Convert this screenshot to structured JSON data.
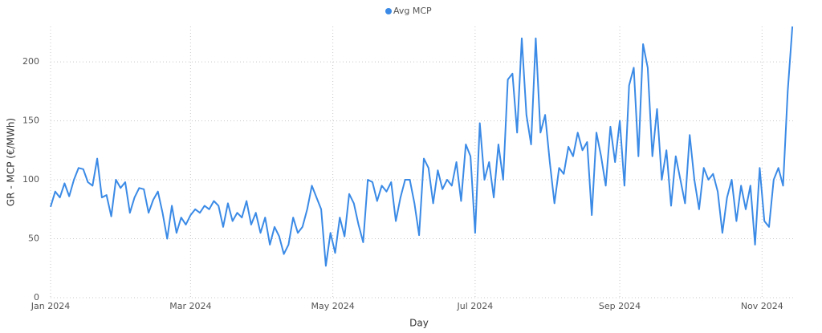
{
  "chart_data": {
    "type": "line",
    "x_label": "Day",
    "y_label": "GR - MCP (€/MWh)",
    "x": [
      0,
      2,
      4,
      6,
      8,
      10,
      12,
      14,
      16,
      18,
      20,
      22,
      24,
      26,
      28,
      30,
      32,
      34,
      36,
      38,
      40,
      42,
      44,
      46,
      48,
      50,
      52,
      54,
      56,
      58,
      60,
      62,
      64,
      66,
      68,
      70,
      72,
      74,
      76,
      78,
      80,
      82,
      84,
      86,
      88,
      90,
      92,
      94,
      96,
      98,
      100,
      102,
      104,
      106,
      108,
      110,
      112,
      114,
      116,
      118,
      120,
      122,
      124,
      126,
      128,
      130,
      132,
      134,
      136,
      138,
      140,
      142,
      144,
      146,
      148,
      150,
      152,
      154,
      156,
      158,
      160,
      162,
      164,
      166,
      168,
      170,
      172,
      174,
      176,
      178,
      180,
      182,
      184,
      186,
      188,
      190,
      192,
      194,
      196,
      198,
      200,
      202,
      204,
      206,
      208,
      210,
      212,
      214,
      216,
      218,
      220,
      222,
      224,
      226,
      228,
      230,
      232,
      234,
      236,
      238,
      240,
      242,
      244,
      246,
      248,
      250,
      252,
      254,
      256,
      258,
      260,
      262,
      264,
      266,
      268,
      270,
      272,
      274,
      276,
      278,
      280,
      282,
      284,
      286,
      288,
      290,
      292,
      294,
      296,
      298,
      300,
      302,
      304,
      306,
      308,
      310,
      312,
      314,
      316,
      318
    ],
    "series": [
      {
        "name": "Avg MCP",
        "color": "#3a8ae6",
        "values": [
          77,
          90,
          85,
          97,
          86,
          100,
          110,
          109,
          98,
          95,
          118,
          85,
          87,
          69,
          100,
          93,
          98,
          72,
          85,
          93,
          92,
          72,
          83,
          90,
          72,
          50,
          78,
          55,
          68,
          62,
          70,
          75,
          72,
          78,
          75,
          82,
          78,
          60,
          80,
          65,
          72,
          68,
          82,
          62,
          72,
          55,
          68,
          45,
          60,
          52,
          37,
          45,
          68,
          55,
          60,
          75,
          95,
          85,
          75,
          27,
          55,
          38,
          68,
          52,
          88,
          80,
          62,
          47,
          100,
          98,
          82,
          95,
          90,
          98,
          65,
          85,
          100,
          100,
          80,
          53,
          118,
          110,
          80,
          108,
          92,
          100,
          95,
          115,
          82,
          130,
          120,
          55,
          148,
          100,
          115,
          85,
          130,
          100,
          185,
          190,
          140,
          220,
          155,
          130,
          220,
          140,
          155,
          115,
          80,
          110,
          105,
          128,
          120,
          140,
          125,
          132,
          70,
          140,
          120,
          95,
          145,
          115,
          150,
          95,
          180,
          195,
          120,
          215,
          195,
          120,
          160,
          100,
          125,
          78,
          120,
          100,
          80,
          138,
          100,
          75,
          110,
          100,
          105,
          90,
          55,
          85,
          100,
          65,
          95,
          75,
          95,
          45,
          110,
          65,
          60,
          100,
          110,
          95,
          175,
          230
        ]
      }
    ],
    "xlim": [
      0,
      319
    ],
    "xticks": [
      {
        "value": 0,
        "label": "Jan 2024"
      },
      {
        "value": 60,
        "label": "Mar 2024"
      },
      {
        "value": 121,
        "label": "May 2024"
      },
      {
        "value": 182,
        "label": "Jul 2024"
      },
      {
        "value": 244,
        "label": "Sep 2024"
      },
      {
        "value": 305,
        "label": "Nov 2024"
      }
    ],
    "ylim": [
      0,
      230
    ],
    "yticks": [
      0,
      50,
      100,
      150,
      200
    ],
    "grid": true,
    "legend": "top"
  }
}
